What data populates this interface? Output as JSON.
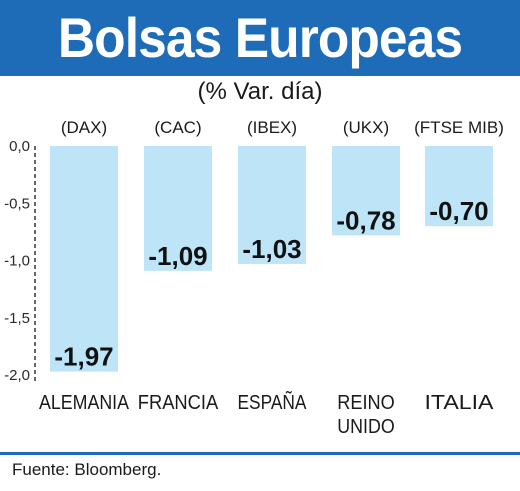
{
  "header": {
    "title": "Bolsas Europeas",
    "subtitle": "(% Var. día)"
  },
  "footer": {
    "source": "Fuente: Bloomberg."
  },
  "colors": {
    "header_bg": "#1e6bb8",
    "bar_fill": "#bde4f7",
    "dashed_axis": "#333333"
  },
  "chart_data": {
    "type": "bar",
    "categories": [
      [
        "ALEMANIA"
      ],
      [
        "FRANCIA"
      ],
      [
        "ESPAÑA"
      ],
      [
        "REINO",
        "UNIDO"
      ],
      [
        "ITALIA"
      ]
    ],
    "index_labels": [
      "(DAX)",
      "(CAC)",
      "(IBEX)",
      "(UKX)",
      "(FTSE MIB)"
    ],
    "values": [
      -1.97,
      -1.09,
      -1.03,
      -0.78,
      -0.7
    ],
    "value_labels": [
      "-1,97",
      "-1,09",
      "-1,03",
      "-0,78",
      "-0,70"
    ],
    "y_ticks": [
      "0,0",
      "-0,5",
      "-1,0",
      "-1,5",
      "-2,0"
    ],
    "ylim": [
      -2.0,
      0.0
    ],
    "grid": false
  }
}
